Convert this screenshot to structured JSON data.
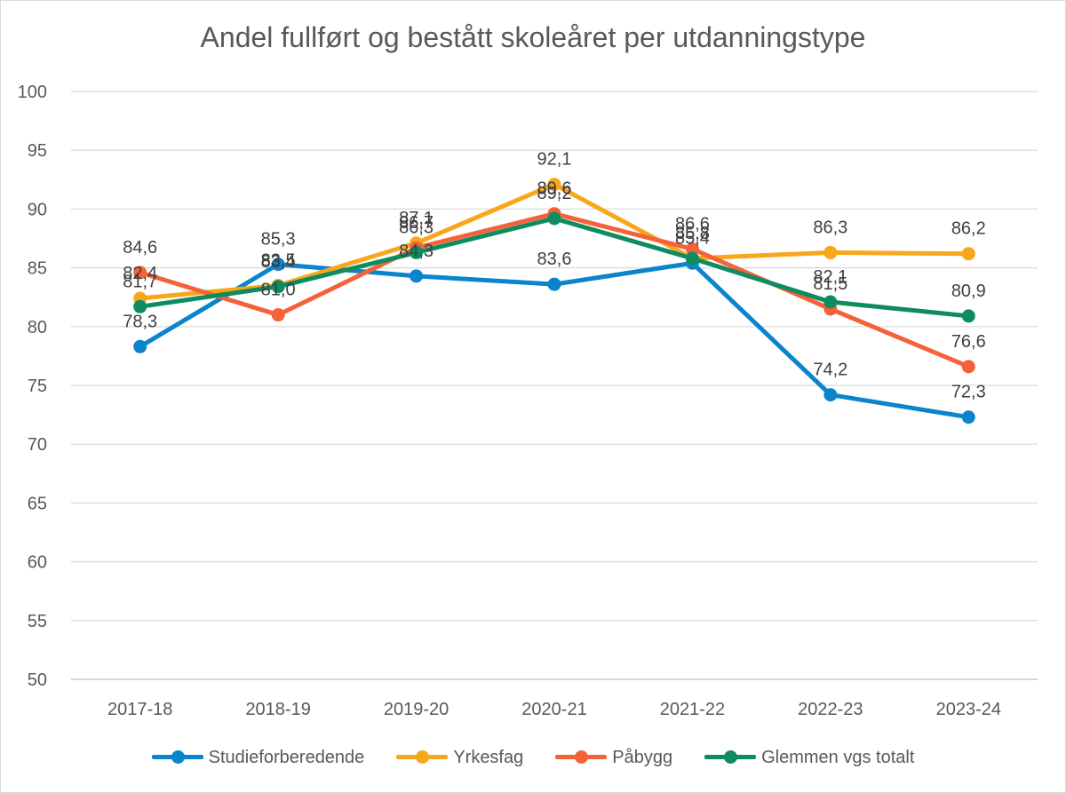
{
  "chart_data": {
    "type": "line",
    "title": "Andel fullført og bestått skoleåret per utdanningstype",
    "xlabel": "",
    "ylabel": "",
    "categories": [
      "2017-18",
      "2018-19",
      "2019-20",
      "2020-21",
      "2021-22",
      "2022-23",
      "2023-24"
    ],
    "ylim": [
      50,
      100
    ],
    "yticks": [
      50,
      55,
      60,
      65,
      70,
      75,
      80,
      85,
      90,
      95,
      100
    ],
    "grid": true,
    "legend_position": "bottom",
    "series": [
      {
        "name": "Studieforberedende",
        "color": "#0a84cc",
        "values": [
          78.3,
          85.3,
          84.3,
          83.6,
          85.4,
          74.2,
          72.3
        ],
        "labels": [
          "78,3",
          "85,3",
          "84,3",
          "83,6",
          "85,4",
          "74,2",
          "72,3"
        ]
      },
      {
        "name": "Yrkesfag",
        "color": "#f8a61c",
        "values": [
          82.4,
          83.5,
          87.1,
          92.1,
          85.8,
          86.3,
          86.2
        ],
        "labels": [
          "82,4",
          "83,5",
          "87,1",
          "92,1",
          "85,8",
          "86,3",
          "86,2"
        ]
      },
      {
        "name": "Påbygg",
        "color": "#f4623a",
        "values": [
          84.6,
          81.0,
          86.7,
          89.6,
          86.6,
          81.5,
          76.6
        ],
        "labels": [
          "84,6",
          "81,0",
          "86,7",
          "89,6",
          "86,6",
          "81,5",
          "76,6"
        ]
      },
      {
        "name": "Glemmen vgs totalt",
        "color": "#0e8c5f",
        "values": [
          81.7,
          83.4,
          86.3,
          89.2,
          85.8,
          82.1,
          80.9
        ],
        "labels": [
          "81,7",
          "83,4",
          "86,3",
          "89,2",
          "85,8",
          "82,1",
          "80,9"
        ]
      }
    ]
  }
}
